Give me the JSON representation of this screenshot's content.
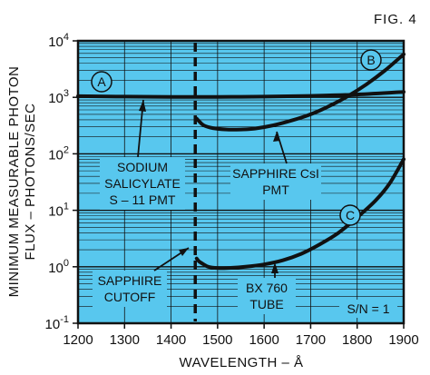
{
  "chart_data": {
    "type": "line",
    "figure_label": "FIG. 4",
    "xlabel": "WAVELENGTH – Å",
    "ylabel_lines": [
      "MINIMUM MEASURABLE PHOTON",
      "FLUX – PHOTONS/SEC"
    ],
    "x_ticks": [
      "1200",
      "1300",
      "1400",
      "1500",
      "1600",
      "1700",
      "1800",
      "1900"
    ],
    "xlim": [
      1200,
      1900
    ],
    "ylim": [
      0.1,
      10000
    ],
    "y_scale": "log",
    "y_ticks": [
      {
        "base": "10",
        "exp": "4",
        "value": 10000
      },
      {
        "base": "10",
        "exp": "3",
        "value": 1000
      },
      {
        "base": "10",
        "exp": "2",
        "value": 100
      },
      {
        "base": "10",
        "exp": "1",
        "value": 10
      },
      {
        "base": "10",
        "exp": "0",
        "value": 1
      },
      {
        "base": "10",
        "exp": "-1",
        "value": 0.1
      }
    ],
    "grid": true,
    "background_color": "#58c7ee",
    "curve_color": "#111111",
    "series": [
      {
        "marker": "A",
        "x": [
          1200,
          1300,
          1400,
          1500,
          1600,
          1700,
          1800,
          1900
        ],
        "y": [
          1050,
          1030,
          1020,
          1020,
          1030,
          1060,
          1120,
          1250
        ]
      },
      {
        "marker": "B",
        "x": [
          1455,
          1460,
          1470,
          1490,
          1520,
          1550,
          1580,
          1620,
          1660,
          1700,
          1740,
          1780,
          1820,
          1860,
          1900
        ],
        "y": [
          420,
          380,
          320,
          285,
          270,
          270,
          280,
          320,
          390,
          500,
          700,
          1050,
          1700,
          3000,
          5800
        ]
      },
      {
        "marker": "C",
        "x": [
          1455,
          1460,
          1470,
          1480,
          1500,
          1520,
          1560,
          1600,
          1640,
          1680,
          1720,
          1760,
          1800,
          1840,
          1870,
          1900
        ],
        "y": [
          1.4,
          1.25,
          1.1,
          1.0,
          0.95,
          0.95,
          1.0,
          1.1,
          1.3,
          1.7,
          2.5,
          4.0,
          7.5,
          15,
          30,
          80
        ]
      }
    ],
    "cutoff_x": 1452,
    "annotations": {
      "sodium": [
        "SODIUM",
        "SALICYLATE",
        "S – 11 PMT"
      ],
      "sapphire_csi": [
        "SAPPHIRE CsI",
        "PMT"
      ],
      "cutoff": [
        "SAPPHIRE",
        "CUTOFF"
      ],
      "bx": [
        "BX 760",
        "TUBE"
      ],
      "sn": "S/N = 1"
    }
  }
}
